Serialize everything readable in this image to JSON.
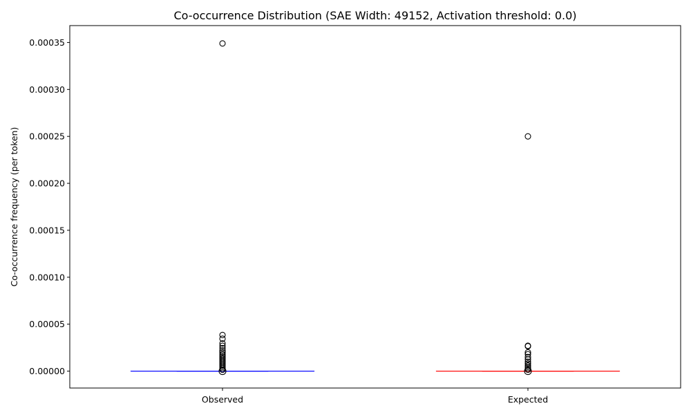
{
  "chart_data": {
    "type": "box",
    "title": "Co-occurrence Distribution (SAE Width: 49152, Activation threshold: 0.0)",
    "xlabel": "",
    "ylabel": "Co-occurrence frequency (per token)",
    "ylim": [
      -1.8e-05,
      0.000368
    ],
    "yticks": [
      0.0,
      5e-05,
      0.0001,
      0.00015,
      0.0002,
      0.00025,
      0.0003,
      0.00035
    ],
    "ytick_labels": [
      "0.00000",
      "0.00005",
      "0.00010",
      "0.00015",
      "0.00020",
      "0.00025",
      "0.00030",
      "0.00035"
    ],
    "categories": [
      "Observed",
      "Expected"
    ],
    "grid": false,
    "series": [
      {
        "category": "Observed",
        "color": "#0000ff",
        "q1": 0.0,
        "median": 0.0,
        "q3": 0.0,
        "whisker_low": 0.0,
        "whisker_high": 0.0,
        "outliers": [
          0.000349,
          3.85e-05,
          3.45e-05,
          2.95e-05,
          2.7e-05,
          2.45e-05,
          2.2e-05,
          2e-05,
          1.8e-05,
          1.65e-05,
          1.5e-05,
          1.35e-05,
          1.2e-05,
          1.05e-05,
          9e-06,
          7.5e-06,
          6e-06,
          4.5e-06,
          3e-06,
          1.5e-06,
          0.0
        ]
      },
      {
        "category": "Expected",
        "color": "#ff0000",
        "q1": 0.0,
        "median": 0.0,
        "q3": 0.0,
        "whisker_low": 0.0,
        "whisker_high": 0.0,
        "outliers": [
          0.00025,
          2.7e-05,
          2.65e-05,
          2e-05,
          1.8e-05,
          1.5e-05,
          1.25e-05,
          1e-05,
          8e-06,
          6e-06,
          4.5e-06,
          3e-06,
          1.5e-06,
          0.0
        ]
      }
    ]
  }
}
